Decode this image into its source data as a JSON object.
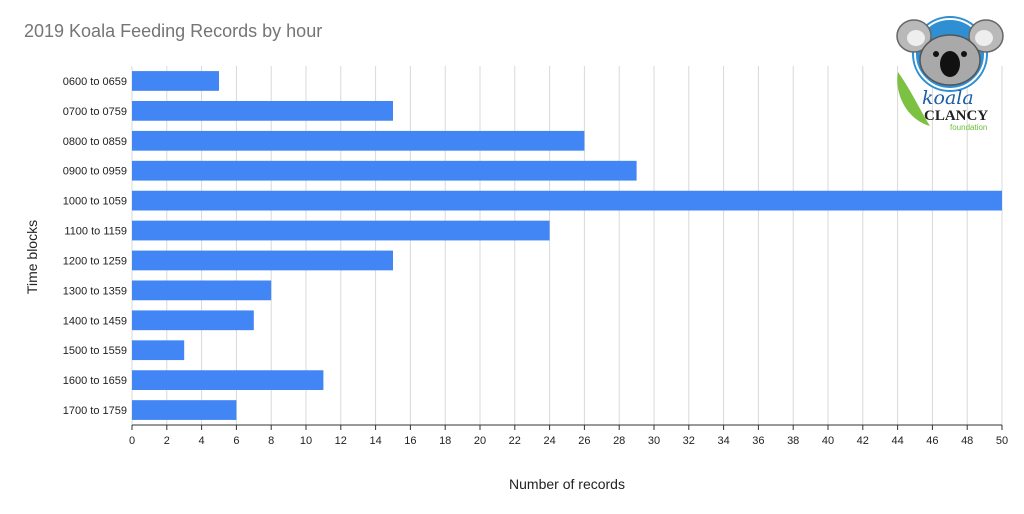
{
  "chart_data": {
    "type": "bar",
    "orientation": "horizontal",
    "title": "2019 Koala Feeding Records by hour",
    "xlabel": "Number of records",
    "ylabel": "Time blocks",
    "categories": [
      "0600 to 0659",
      "0700 to 0759",
      "0800 to 0859",
      "0900 to 0959",
      "1000 to 1059",
      "1100 to 1159",
      "1200 to 1259",
      "1300 to 1359",
      "1400 to 1459",
      "1500 to 1559",
      "1600 to 1659",
      "1700 to 1759"
    ],
    "values": [
      5,
      15,
      26,
      29,
      50,
      24,
      15,
      8,
      7,
      3,
      11,
      6
    ],
    "xlim": [
      0,
      50
    ],
    "xticks": [
      0,
      2,
      4,
      6,
      8,
      10,
      12,
      14,
      16,
      18,
      20,
      22,
      24,
      26,
      28,
      30,
      32,
      34,
      36,
      38,
      40,
      42,
      44,
      46,
      48,
      50
    ],
    "grid": true,
    "bar_color": "#4285f4"
  },
  "logo": {
    "word1": "koala",
    "word2": "CLANCY",
    "word3": "foundation",
    "icon": "koala-face-icon",
    "colors": {
      "circle": "#2f8fd3",
      "leaf": "#7cc142",
      "text_dark": "#222222",
      "text_green": "#6bbf3a"
    }
  }
}
